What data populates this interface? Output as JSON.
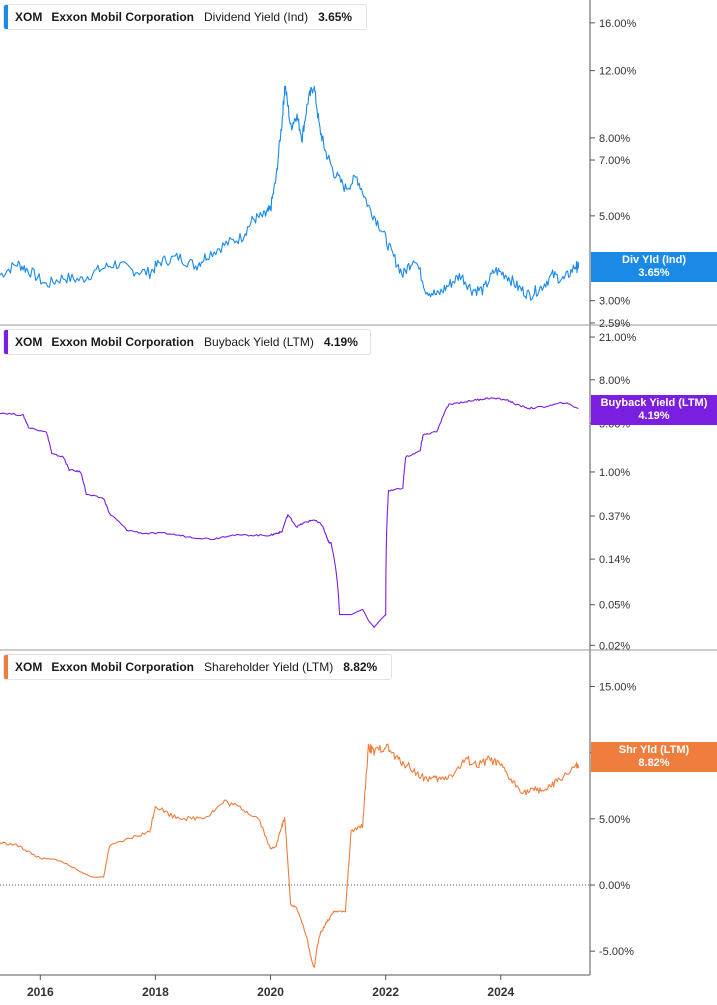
{
  "colors": {
    "panel1": "#1a8ae6",
    "panel2": "#7a1fe0",
    "panel3": "#ef7d3d",
    "grid": "#c8c8c8",
    "axis": "#555555"
  },
  "panels": [
    {
      "ticker": "XOM",
      "company": "Exxon Mobil Corporation",
      "metric": "Dividend Yield (Ind)",
      "value": "3.65%",
      "flag_label": "Div Yld (Ind)",
      "flag_value": "3.65%",
      "ticks": [
        "16.00%",
        "12.00%",
        "8.00%",
        "7.00%",
        "5.00%",
        "3.00%",
        "2.59%"
      ]
    },
    {
      "ticker": "XOM",
      "company": "Exxon Mobil Corporation",
      "metric": "Buyback Yield (LTM)",
      "value": "4.19%",
      "flag_label": "Buyback Yield (LTM)",
      "flag_value": "4.19%",
      "ticks": [
        "21.00%",
        "8.00%",
        "3.00%",
        "1.00%",
        "0.37%",
        "0.14%",
        "0.05%",
        "0.02%"
      ]
    },
    {
      "ticker": "XOM",
      "company": "Exxon Mobil Corporation",
      "metric": "Shareholder Yield (LTM)",
      "value": "8.82%",
      "flag_label": "Shr Yld (LTM)",
      "flag_value": "8.82%",
      "ticks": [
        "15.00%",
        "10.00%",
        "5.00%",
        "0.00%",
        "-5.00%"
      ]
    }
  ],
  "x_ticks": [
    "2016",
    "2018",
    "2020",
    "2022",
    "2024"
  ],
  "chart_data": [
    {
      "type": "line",
      "title": "",
      "ylabel": "",
      "yscale": "log",
      "ylim": [
        2.59,
        17.5
      ],
      "xlim": [
        2015.3,
        2025.55
      ],
      "series": [
        {
          "name": "Dividend Yield (Ind)",
          "x": [
            2015.3,
            2015.6,
            2015.8,
            2016.1,
            2016.4,
            2016.7,
            2017.0,
            2017.3,
            2017.6,
            2017.9,
            2018.1,
            2018.4,
            2018.7,
            2018.9,
            2019.2,
            2019.5,
            2019.7,
            2019.9,
            2020.0,
            2020.1,
            2020.2,
            2020.25,
            2020.35,
            2020.45,
            2020.55,
            2020.65,
            2020.75,
            2020.85,
            2020.95,
            2021.1,
            2021.3,
            2021.5,
            2021.7,
            2021.9,
            2022.1,
            2022.3,
            2022.5,
            2022.7,
            2022.9,
            2023.1,
            2023.3,
            2023.5,
            2023.7,
            2023.9,
            2024.1,
            2024.3,
            2024.5,
            2024.7,
            2024.9,
            2025.1,
            2025.3,
            2025.35
          ],
          "y": [
            3.5,
            3.75,
            3.6,
            3.3,
            3.45,
            3.4,
            3.6,
            3.75,
            3.6,
            3.55,
            3.8,
            3.9,
            3.7,
            3.95,
            4.2,
            4.4,
            4.9,
            5.0,
            5.2,
            6.3,
            8.8,
            11.0,
            8.5,
            9.2,
            8.0,
            10.0,
            11.0,
            8.5,
            7.4,
            6.5,
            5.9,
            6.3,
            5.3,
            4.7,
            4.0,
            3.5,
            3.9,
            3.2,
            3.1,
            3.3,
            3.5,
            3.2,
            3.2,
            3.6,
            3.5,
            3.25,
            3.1,
            3.25,
            3.5,
            3.4,
            3.7,
            3.65
          ]
        }
      ]
    },
    {
      "type": "line",
      "title": "",
      "ylabel": "",
      "yscale": "log",
      "ylim": [
        0.018,
        23
      ],
      "xlim": [
        2015.3,
        2025.55
      ],
      "series": [
        {
          "name": "Buyback Yield (LTM)",
          "x": [
            2015.3,
            2015.7,
            2015.8,
            2016.1,
            2016.2,
            2016.4,
            2016.5,
            2016.7,
            2016.8,
            2017.1,
            2017.2,
            2017.5,
            2017.8,
            2018.2,
            2018.6,
            2019.0,
            2019.3,
            2019.7,
            2020.0,
            2020.1,
            2020.2,
            2020.3,
            2020.45,
            2020.6,
            2020.75,
            2020.9,
            2020.95,
            2021.0,
            2021.05,
            2021.2,
            2021.4,
            2021.6,
            2021.7,
            2021.8,
            2022.0,
            2022.05,
            2022.3,
            2022.35,
            2022.6,
            2022.65,
            2022.9,
            2023.1,
            2023.4,
            2023.6,
            2023.8,
            2024.1,
            2024.3,
            2024.5,
            2024.8,
            2025.1,
            2025.35
          ],
          "y": [
            3.8,
            3.6,
            2.7,
            2.5,
            1.5,
            1.4,
            1.05,
            1.0,
            0.6,
            0.55,
            0.39,
            0.27,
            0.25,
            0.25,
            0.23,
            0.22,
            0.24,
            0.24,
            0.24,
            0.25,
            0.26,
            0.38,
            0.29,
            0.32,
            0.34,
            0.3,
            0.25,
            0.21,
            0.2,
            0.04,
            0.04,
            0.045,
            0.035,
            0.03,
            0.04,
            0.65,
            0.7,
            1.4,
            1.6,
            2.3,
            2.5,
            4.6,
            4.9,
            5.1,
            5.3,
            5.1,
            4.5,
            4.2,
            4.4,
            4.8,
            4.19
          ]
        }
      ]
    },
    {
      "type": "line",
      "title": "",
      "ylabel": "",
      "ylim": [
        -6.8,
        17
      ],
      "xlim": [
        2015.3,
        2025.55
      ],
      "series": [
        {
          "name": "Shareholder Yield (LTM)",
          "x": [
            2015.3,
            2015.6,
            2015.8,
            2016.0,
            2016.3,
            2016.5,
            2016.7,
            2016.9,
            2017.1,
            2017.2,
            2017.6,
            2017.9,
            2018.0,
            2018.3,
            2018.6,
            2018.9,
            2019.2,
            2019.5,
            2019.8,
            2020.0,
            2020.1,
            2020.2,
            2020.25,
            2020.35,
            2020.45,
            2020.6,
            2020.75,
            2020.85,
            2020.95,
            2021.1,
            2021.3,
            2021.4,
            2021.6,
            2021.7,
            2021.8,
            2022.0,
            2022.2,
            2022.4,
            2022.6,
            2022.8,
            2023.0,
            2023.2,
            2023.4,
            2023.6,
            2023.8,
            2024.0,
            2024.2,
            2024.4,
            2024.6,
            2024.8,
            2025.0,
            2025.3,
            2025.35
          ],
          "y": [
            3.2,
            3.0,
            2.5,
            2.0,
            1.9,
            1.5,
            1.0,
            0.6,
            0.6,
            2.9,
            3.6,
            4.0,
            6.0,
            5.2,
            5.0,
            5.2,
            6.3,
            5.8,
            5.0,
            2.7,
            3.0,
            4.5,
            5.0,
            -1.5,
            -1.7,
            -3.5,
            -6.3,
            -3.8,
            -3.0,
            -2.0,
            -2.0,
            4.0,
            4.5,
            10.5,
            10.0,
            10.5,
            9.5,
            9.0,
            8.2,
            8.0,
            8.0,
            8.5,
            9.5,
            9.0,
            9.5,
            9.0,
            7.8,
            7.0,
            7.2,
            7.2,
            7.9,
            9.0,
            8.82
          ]
        }
      ]
    }
  ]
}
